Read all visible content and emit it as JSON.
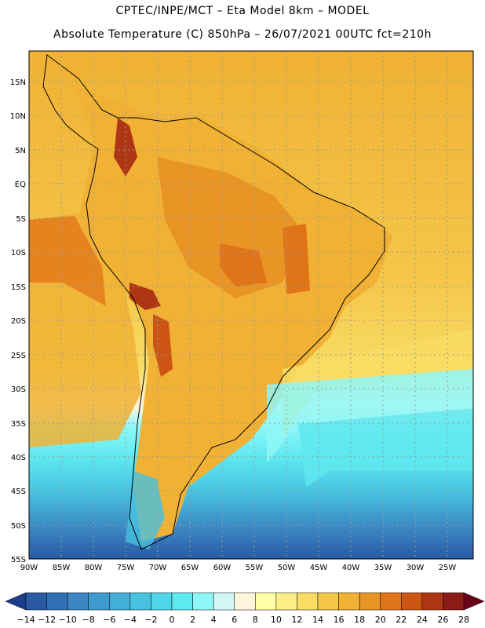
{
  "header": {
    "line1": "CPTEC/INPE/MCT –  Eta Model 8km – MODEL",
    "line2": "Absolute Temperature (C) 850hPa – 26/07/2021 00UTC fct=210h"
  },
  "map": {
    "lat_labels": [
      "15N",
      "10N",
      "5N",
      "EQ",
      "5S",
      "10S",
      "15S",
      "20S",
      "25S",
      "30S",
      "35S",
      "40S",
      "45S",
      "50S",
      "55S"
    ],
    "lon_labels": [
      "90W",
      "85W",
      "80W",
      "75W",
      "70W",
      "65W",
      "60W",
      "55W",
      "50W",
      "45W",
      "40W",
      "35W",
      "30W",
      "25W"
    ]
  },
  "colorbar": {
    "labels": [
      "-14",
      "-12",
      "-10",
      "-8",
      "-6",
      "-4",
      "-2",
      "0",
      "2",
      "4",
      "6",
      "8",
      "10",
      "12",
      "14",
      "16",
      "18",
      "20",
      "22",
      "24",
      "26",
      "28"
    ],
    "colors": [
      "#1d3e8f",
      "#2a5aa3",
      "#3170b3",
      "#3b86c3",
      "#3f9ad0",
      "#43aed8",
      "#47c2e0",
      "#4fd6e8",
      "#5ee8ef",
      "#8ef7f7",
      "#d2f7f7",
      "#fff5dd",
      "#ffffa8",
      "#fbee86",
      "#f8dc63",
      "#f4c64a",
      "#f0b134",
      "#e89526",
      "#e07418",
      "#cc5514",
      "#ad3714",
      "#8c1a17",
      "#6b0018"
    ]
  }
}
